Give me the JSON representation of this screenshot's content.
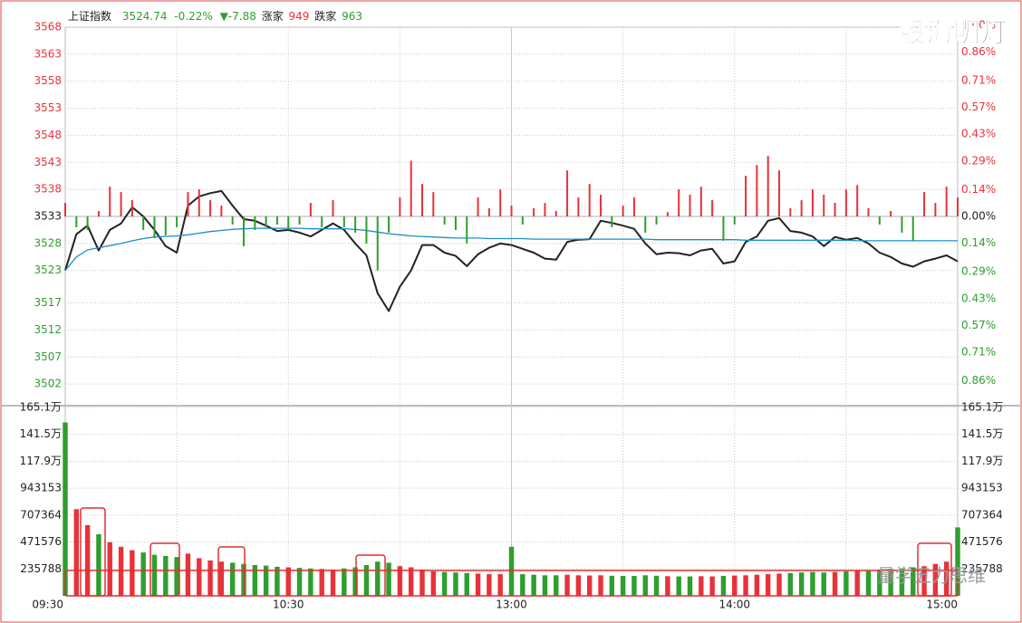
{
  "watermarks": [
    "股海明灯",
    "量学五力思维"
  ],
  "chart_data": [
    {
      "type": "line",
      "title": "上证指数",
      "price": 3524.74,
      "change_pct": "-0.22%",
      "change": "▼-7.88",
      "up_label": "涨家",
      "up_count": 949,
      "down_label": "跌家",
      "down_count": 963,
      "ylim": [
        3498,
        3568
      ],
      "yticks": [
        3568,
        3563,
        3558,
        3553,
        3548,
        3543,
        3538,
        3533,
        3528,
        3523,
        3517,
        3512,
        3507,
        3502
      ],
      "y2lim": [
        -0.99,
        0.99
      ],
      "y2ticks": [
        {
          "value": 1.0,
          "label": "1.00%"
        },
        {
          "value": 0.86,
          "label": "0.86%"
        },
        {
          "value": 0.71,
          "label": "0.71%"
        },
        {
          "value": 0.57,
          "label": "0.57%"
        },
        {
          "value": 0.43,
          "label": "0.43%"
        },
        {
          "value": 0.29,
          "label": "0.29%"
        },
        {
          "value": 0.14,
          "label": "0.14%"
        },
        {
          "value": 0,
          "label": "0.00%"
        },
        {
          "value": -0.14,
          "label": "0.14%"
        },
        {
          "value": -0.29,
          "label": "0.29%"
        },
        {
          "value": -0.43,
          "label": "0.43%"
        },
        {
          "value": -0.57,
          "label": "0.57%"
        },
        {
          "value": -0.71,
          "label": "0.71%"
        },
        {
          "value": -0.86,
          "label": "0.86%"
        }
      ],
      "up_color": "#e8323a",
      "down_color": "#2e9e2e",
      "grid": true,
      "series": [
        {
          "color": "#222222",
          "values": [
            3523.0,
            3529.7,
            3531.3,
            3526.7,
            3530.5,
            3531.7,
            3534.7,
            3533.0,
            3530.5,
            3527.5,
            3526.3,
            3535.0,
            3536.7,
            3537.3,
            3537.7,
            3535.0,
            3532.5,
            3532.2,
            3531.3,
            3530.3,
            3530.5,
            3530.0,
            3529.3,
            3530.5,
            3531.7,
            3530.5,
            3528.0,
            3525.8,
            3518.8,
            3515.5,
            3520.0,
            3523.0,
            3527.7,
            3527.7,
            3526.3,
            3525.7,
            3523.8,
            3526.0,
            3527.2,
            3528.0,
            3527.7,
            3527.0,
            3526.3,
            3525.2,
            3525.0,
            3528.3,
            3528.7,
            3528.8,
            3532.2,
            3531.8,
            3531.3,
            3530.7,
            3528.0,
            3526.0,
            3526.3,
            3526.2,
            3525.8,
            3526.7,
            3527.0,
            3524.3,
            3524.7,
            3528.3,
            3529.3,
            3532.2,
            3532.7,
            3530.3,
            3530.0,
            3529.3,
            3527.5,
            3529.2,
            3528.7,
            3529.0,
            3528.0,
            3526.3,
            3525.5,
            3524.3,
            3523.7,
            3524.7,
            3525.2,
            3525.8,
            3524.7
          ]
        },
        {
          "color": "#1a8fc7",
          "values": [
            3523.0,
            3525.5,
            3526.8,
            3527.2,
            3527.6,
            3528.0,
            3528.5,
            3528.9,
            3529.2,
            3529.3,
            3529.4,
            3529.6,
            3529.9,
            3530.2,
            3530.4,
            3530.6,
            3530.7,
            3530.8,
            3530.8,
            3530.8,
            3530.8,
            3530.8,
            3530.7,
            3530.7,
            3530.7,
            3530.7,
            3530.6,
            3530.4,
            3530.1,
            3529.8,
            3529.6,
            3529.4,
            3529.3,
            3529.2,
            3529.1,
            3529.0,
            3529.0,
            3529.0,
            3528.9,
            3528.9,
            3528.9,
            3528.9,
            3528.8,
            3528.8,
            3528.8,
            3528.8,
            3528.8,
            3528.8,
            3528.8,
            3528.8,
            3528.8,
            3528.8,
            3528.8,
            3528.7,
            3528.7,
            3528.7,
            3528.7,
            3528.7,
            3528.7,
            3528.7,
            3528.7,
            3528.6,
            3528.6,
            3528.6,
            3528.6,
            3528.6,
            3528.6,
            3528.6,
            3528.6,
            3528.6,
            3528.6,
            3528.5,
            3528.5,
            3528.5,
            3528.5,
            3528.5,
            3528.5,
            3528.5,
            3528.5,
            3528.5,
            3528.5
          ]
        },
        {
          "kind": "bar",
          "values": [
            3535.5,
            3531,
            3530.5,
            3534,
            3538.5,
            3537.5,
            3536,
            3530.5,
            3529,
            3529.5,
            3531,
            3537.5,
            3538,
            3536,
            3535,
            3531.5,
            3527.5,
            3530.5,
            3531,
            3531.5,
            3530.5,
            3531.5,
            3535.5,
            3531,
            3536,
            3531,
            3530,
            3528,
            3523,
            3530,
            3536.5,
            3543.3,
            3539,
            3537.5,
            3531.5,
            3530.5,
            3528,
            3536.5,
            3534.5,
            3538,
            3535,
            3531.5,
            3534.5,
            3535.5,
            3534,
            3541.5,
            3536.5,
            3539,
            3537,
            3531,
            3535,
            3536.5,
            3530,
            3531.5,
            3533.8,
            3538,
            3537,
            3538.5,
            3536,
            3528.5,
            3531.5,
            3540.5,
            3542.5,
            3544.2,
            3541.5,
            3534.5,
            3536,
            3538,
            3537,
            3535.5,
            3538,
            3538.8,
            3534.5,
            3531.5,
            3534,
            3530,
            3528.5,
            3537.5,
            3535.5,
            3538.5,
            3536.5
          ]
        }
      ]
    },
    {
      "type": "bar",
      "categories": [
        "09:30",
        null,
        null,
        null,
        null,
        null,
        null,
        null,
        null,
        null,
        null,
        null,
        null,
        null,
        null,
        null,
        null,
        null,
        null,
        null,
        "10:30",
        null,
        null,
        null,
        null,
        null,
        null,
        null,
        null,
        null,
        null,
        null,
        null,
        null,
        null,
        null,
        null,
        null,
        null,
        null,
        "13:00",
        null,
        null,
        null,
        null,
        null,
        null,
        null,
        null,
        null,
        null,
        null,
        null,
        null,
        null,
        null,
        null,
        null,
        null,
        null,
        "14:00",
        null,
        null,
        null,
        null,
        null,
        null,
        null,
        null,
        null,
        null,
        null,
        null,
        null,
        null,
        null,
        null,
        null,
        null,
        null,
        "15:00"
      ],
      "ylim": [
        0,
        1651000
      ],
      "yticks": [
        {
          "value": 1651000,
          "label": "165.1万"
        },
        {
          "value": 1415000,
          "label": "141.5万"
        },
        {
          "value": 1179000,
          "label": "117.9万"
        },
        943153,
        707364,
        471576,
        235788
      ],
      "up_color": "#e8323a",
      "down_color": "#2e9e2e",
      "values": [
        1520000,
        760000,
        620000,
        540000,
        470000,
        430000,
        400000,
        380000,
        360000,
        350000,
        340000,
        370000,
        330000,
        310000,
        300000,
        290000,
        280000,
        270000,
        265000,
        255000,
        250000,
        245000,
        240000,
        235000,
        230000,
        240000,
        250000,
        270000,
        300000,
        290000,
        260000,
        250000,
        230000,
        215000,
        210000,
        205000,
        200000,
        195000,
        190000,
        190000,
        430000,
        190000,
        185000,
        180000,
        180000,
        185000,
        180000,
        178000,
        180000,
        176000,
        175000,
        174000,
        180000,
        176000,
        172000,
        170000,
        170000,
        172000,
        170000,
        175000,
        178000,
        180000,
        185000,
        190000,
        195000,
        200000,
        205000,
        210000,
        205000,
        210000,
        215000,
        220000,
        225000,
        230000,
        235000,
        240000,
        250000,
        260000,
        280000,
        300000,
        600000
      ]
    }
  ]
}
